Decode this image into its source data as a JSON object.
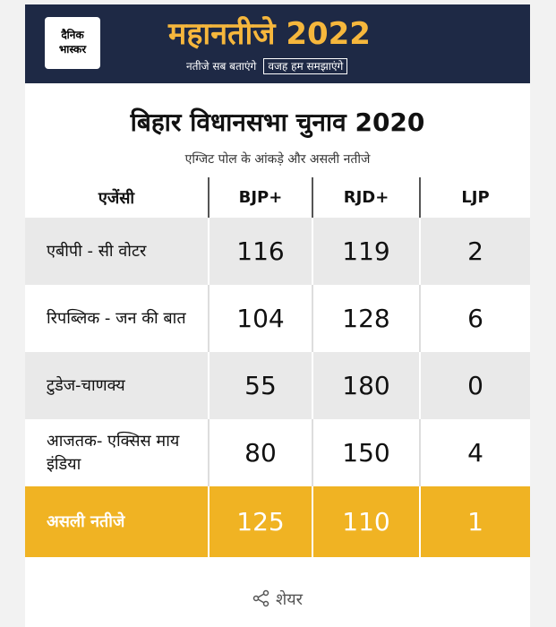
{
  "header": {
    "logo_line1": "दैनिक",
    "logo_line2": "भास्कर",
    "title": "महानतीजे 2022",
    "tagline_1": "नतीजे सब बताएंगे",
    "tagline_2": "वजह हम समझाएंगे"
  },
  "title": "बिहार विधानसभा चुनाव 2020",
  "subtitle": "एग्जिट पोल के आंकड़े और असली नतीजे",
  "table": {
    "columns": [
      "एजेंसी",
      "BJP+",
      "RJD+",
      "LJP"
    ],
    "rows": [
      [
        "एबीपी - सी वोटर",
        116,
        119,
        2
      ],
      [
        "रिपब्लिक - जन की बात",
        104,
        128,
        6
      ],
      [
        "टुडेज-चाणक्य",
        55,
        180,
        0
      ],
      [
        "आजतक- एक्सिस माय इंडिया",
        80,
        150,
        4
      ],
      [
        "असली नतीजे",
        125,
        110,
        1
      ]
    ]
  },
  "share": "शेयर"
}
